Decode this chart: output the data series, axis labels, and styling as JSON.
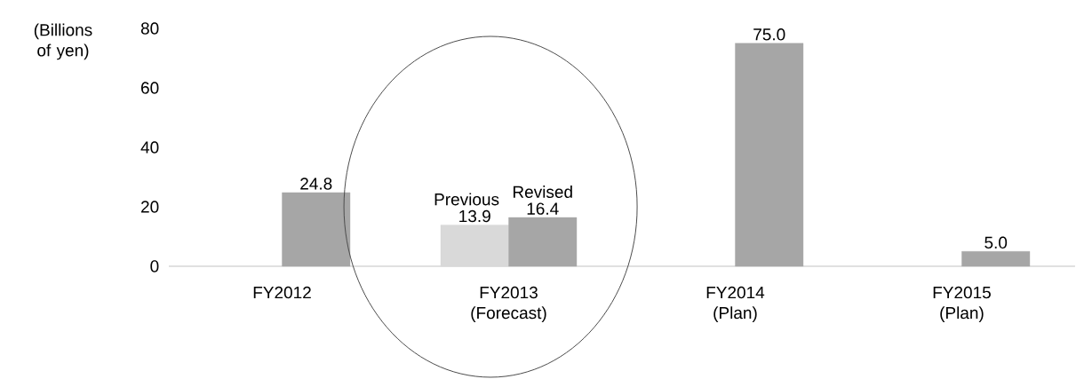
{
  "chart_data": {
    "type": "bar",
    "ylabel": "(Billions of yen)",
    "categories": [
      "FY2012",
      "FY2013 (Forecast)",
      "FY2014 (Plan)",
      "FY2015 (Plan)"
    ],
    "series": [
      {
        "name": "Previous",
        "color": "#d9d9d9",
        "values": [
          null,
          13.9,
          null,
          null
        ],
        "value_labels": [
          null,
          "13.9",
          null,
          null
        ]
      },
      {
        "name": "Revised",
        "color": "#a6a6a6",
        "values": [
          24.8,
          16.4,
          75.0,
          5.0
        ],
        "value_labels": [
          "24.8",
          "16.4",
          "75.0",
          "5.0"
        ]
      }
    ],
    "ylim": [
      0,
      80
    ],
    "yticks": [
      0,
      20,
      40,
      60,
      80
    ],
    "grid": false
  }
}
